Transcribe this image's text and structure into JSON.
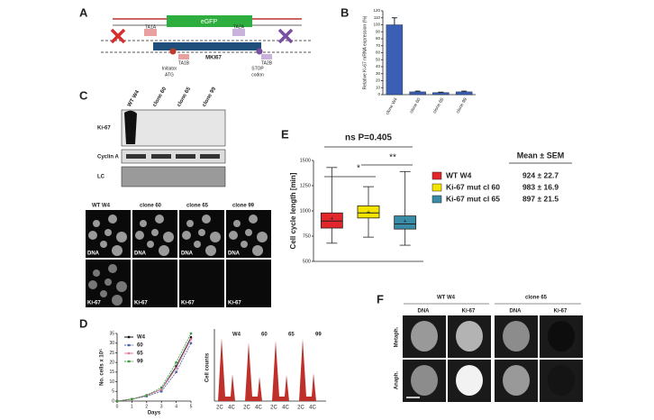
{
  "panel_labels": [
    "A",
    "B",
    "C",
    "D",
    "E",
    "F"
  ],
  "panel_a": {
    "egfp": "eGFP",
    "gene": "MKI67",
    "ta1a": "TA1A",
    "ta1b": "TA1B",
    "ta2a": "TA2A",
    "ta2b": "TA2B",
    "start": [
      "Initiator",
      "ATG"
    ],
    "stop": [
      "STOP",
      "codon"
    ]
  },
  "panel_c": {
    "lanes": [
      "WT W4",
      "clone 60",
      "clone 65",
      "clone 99"
    ],
    "rows": [
      "Ki-67",
      "Cyclin A",
      "LC"
    ],
    "image_cols": [
      "WT W4",
      "clone 60",
      "clone 65",
      "clone 99"
    ],
    "image_rows": [
      "DNA",
      "Ki-67"
    ]
  },
  "panel_d_hist": {
    "samples": [
      "W4",
      "60",
      "65",
      "99"
    ],
    "y_label": "Cell counts",
    "x_labels": [
      "2C",
      "4C"
    ]
  },
  "panel_e_stats": {
    "title": "Mean ± SEM",
    "rows": [
      "924 ± 22.7",
      "983 ± 16.9",
      "897 ± 21.5"
    ]
  },
  "panel_f": {
    "groups": [
      "WT W4",
      "clone 65"
    ],
    "channels": [
      "DNA",
      "Ki-67",
      "DNA",
      "Ki-67"
    ],
    "rows": [
      "Metaph.",
      "Anaph."
    ]
  },
  "chart_data": [
    {
      "type": "bar",
      "y_label": "Relative Ki-67 mRNA expression (%)",
      "categories": [
        "clone W4",
        "clone 60",
        "clone 65",
        "clone 99"
      ],
      "values": [
        100,
        4,
        3,
        4
      ],
      "errors": [
        10,
        1,
        0.5,
        1
      ],
      "color": "#3b5fb4",
      "ylim": [
        0,
        120
      ],
      "yticks": [
        0,
        10,
        20,
        30,
        40,
        50,
        60,
        70,
        80,
        90,
        100,
        110,
        120
      ]
    },
    {
      "type": "line",
      "y_label": "No. cells x 10⁵",
      "x_label": "Days",
      "x": [
        0,
        1,
        2,
        3,
        4,
        5
      ],
      "series": [
        {
          "name": "W4",
          "color": "#111111",
          "values": [
            0,
            1,
            3,
            6,
            18,
            33
          ]
        },
        {
          "name": "60",
          "color": "#4a5fa8",
          "values": [
            0,
            1,
            2.5,
            5,
            15,
            30
          ]
        },
        {
          "name": "65",
          "color": "#e07aa0",
          "values": [
            0,
            1,
            3,
            6,
            17,
            32
          ]
        },
        {
          "name": "99",
          "color": "#3a9a3a",
          "values": [
            0,
            1,
            3,
            7,
            20,
            35
          ]
        }
      ],
      "xlim": [
        0,
        5
      ],
      "xticks": [
        0,
        1,
        2,
        3,
        4,
        5
      ],
      "ylim": [
        0,
        35
      ],
      "yticks": [
        0,
        5,
        10,
        15,
        20,
        25,
        30,
        35
      ]
    },
    {
      "type": "box",
      "y_label": "Cell cycle length [min]",
      "annotation": "ns P=0.405",
      "sig": [
        "*",
        "**"
      ],
      "boxes": [
        {
          "name": "WT W4",
          "color": "#e3262b",
          "whisker_low": 680,
          "q1": 830,
          "median": 900,
          "q3": 980,
          "whisker_high": 1430,
          "mean": 924
        },
        {
          "name": "Ki-67 mut cl 60",
          "color": "#f5e400",
          "whisker_low": 740,
          "q1": 930,
          "median": 980,
          "q3": 1050,
          "whisker_high": 1240,
          "mean": 983
        },
        {
          "name": "Ki-67 mut cl 65",
          "color": "#3a8ba6",
          "whisker_low": 660,
          "q1": 820,
          "median": 870,
          "q3": 950,
          "whisker_high": 1390,
          "mean": 897
        }
      ],
      "ylim": [
        500,
        1500
      ],
      "yticks": [
        500,
        750,
        1000,
        1250,
        1500
      ]
    }
  ]
}
